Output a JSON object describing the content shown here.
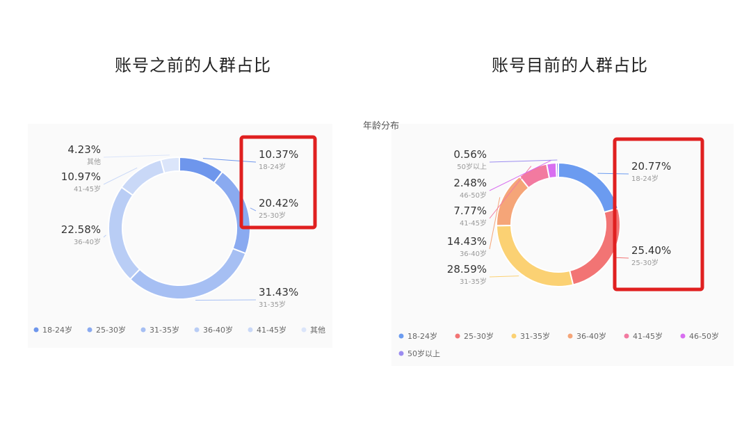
{
  "headings": {
    "left": "账号之前的人群占比",
    "right": "账号目前的人群占比"
  },
  "subtitle": "年龄分布",
  "chart_data": [
    {
      "type": "pie",
      "variant": "donut",
      "title": "账号之前的人群占比",
      "categories": [
        "18-24岁",
        "25-30岁",
        "31-35岁",
        "36-40岁",
        "41-45岁",
        "其他"
      ],
      "values": [
        10.37,
        20.42,
        31.43,
        22.58,
        10.97,
        4.23
      ],
      "value_labels": [
        "10.37%",
        "20.42%",
        "31.43%",
        "22.58%",
        "10.97%",
        "4.23%"
      ],
      "colors": [
        "#6e96ec",
        "#8aaaf0",
        "#a6bff3",
        "#b9cdf5",
        "#c9d8f7",
        "#dbe5fa"
      ],
      "highlight": [
        "18-24岁",
        "25-30岁"
      ],
      "highlight_color": "#e02020",
      "legend_placement": "bottom"
    },
    {
      "type": "pie",
      "variant": "donut",
      "title": "账号目前的人群占比",
      "categories": [
        "18-24岁",
        "25-30岁",
        "31-35岁",
        "36-40岁",
        "41-45岁",
        "46-50岁",
        "50岁以上"
      ],
      "values": [
        20.77,
        25.4,
        28.59,
        14.43,
        7.77,
        2.48,
        0.56
      ],
      "value_labels": [
        "20.77%",
        "25.40%",
        "28.59%",
        "14.43%",
        "7.77%",
        "2.48%",
        "0.56%"
      ],
      "colors": [
        "#6b9bf0",
        "#f27474",
        "#fbd173",
        "#f5a578",
        "#f27aa0",
        "#d86ef0",
        "#9b8cf0"
      ],
      "highlight": [
        "18-24岁",
        "25-30岁"
      ],
      "highlight_color": "#e02020",
      "legend_placement": "bottom"
    }
  ]
}
